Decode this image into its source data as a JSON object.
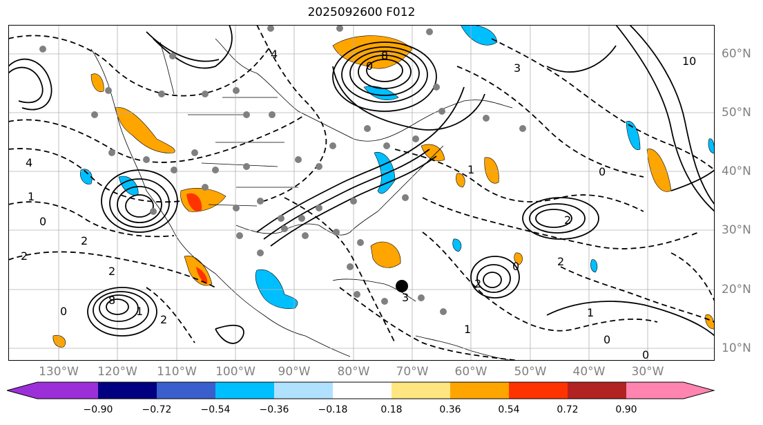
{
  "title": "2025092600 F012",
  "longitude_labels": [
    "130°W",
    "120°W",
    "110°W",
    "100°W",
    "90°W",
    "80°W",
    "70°W",
    "60°W",
    "50°W",
    "40°W",
    "30°W"
  ],
  "latitude_labels": [
    "60°N",
    "50°N",
    "40°N",
    "30°N",
    "20°N",
    "10°N"
  ],
  "colorbar": {
    "tick_labels": [
      "−0.90",
      "−0.72",
      "−0.54",
      "−0.36",
      "−0.18",
      "0.18",
      "0.36",
      "0.54",
      "0.72",
      "0.90"
    ],
    "colors": [
      "#9b30d9",
      "#000080",
      "#3a5fcd",
      "#00bfff",
      "#b0e2ff",
      "#ffffff",
      "#ffe680",
      "#ffa500",
      "#ff3300",
      "#b22222",
      "#ff85b0"
    ]
  },
  "contour_labels": [
    "10",
    "8",
    "0",
    "3",
    "4",
    "4",
    "1",
    "0",
    "2",
    "2",
    "2",
    "0",
    "1",
    "2",
    "1",
    "0",
    "0",
    "1",
    "2",
    "0",
    "0",
    "1",
    "2",
    "8",
    "2",
    "3"
  ],
  "colors": {
    "positive": "#ffa500",
    "strong_positive": "#ff3300",
    "negative": "#00bfff",
    "land_markers": "#808080",
    "contour": "#000000"
  }
}
